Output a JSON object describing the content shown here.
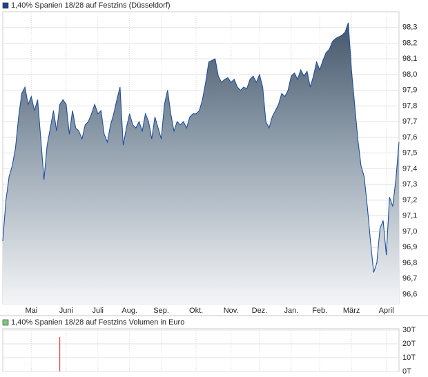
{
  "chart_data": [
    {
      "type": "area",
      "series": [
        {
          "name": "1,40% Spanien 18/28 auf Festzins (Düsseldorf)",
          "color": "#1f4f9e",
          "legend_color": "#1f3f8f",
          "values": [
            96.94,
            97.2,
            97.35,
            97.42,
            97.53,
            97.73,
            97.88,
            97.92,
            97.81,
            97.86,
            97.77,
            97.84,
            97.59,
            97.33,
            97.55,
            97.66,
            97.77,
            97.64,
            97.81,
            97.84,
            97.81,
            97.62,
            97.77,
            97.66,
            97.64,
            97.59,
            97.68,
            97.7,
            97.75,
            97.81,
            97.75,
            97.77,
            97.62,
            97.57,
            97.68,
            97.75,
            97.84,
            97.92,
            97.55,
            97.66,
            97.75,
            97.68,
            97.66,
            97.7,
            97.64,
            97.75,
            97.7,
            97.59,
            97.73,
            97.66,
            97.59,
            97.81,
            97.9,
            97.75,
            97.64,
            97.7,
            97.68,
            97.7,
            97.66,
            97.73,
            97.75,
            97.75,
            97.77,
            97.84,
            97.95,
            98.08,
            98.09,
            98.1,
            97.99,
            97.95,
            97.97,
            97.98,
            97.95,
            97.97,
            97.92,
            97.9,
            97.92,
            97.91,
            97.97,
            97.99,
            97.95,
            98.0,
            97.92,
            97.7,
            97.66,
            97.73,
            97.77,
            97.81,
            97.88,
            97.86,
            97.9,
            97.99,
            98.01,
            97.97,
            98.03,
            97.99,
            98.02,
            97.92,
            97.99,
            98.08,
            98.03,
            98.09,
            98.14,
            98.16,
            98.21,
            98.23,
            98.24,
            98.25,
            98.27,
            98.33,
            98.03,
            97.81,
            97.59,
            97.42,
            97.35,
            97.16,
            96.94,
            96.74,
            96.8,
            97.02,
            97.07,
            96.85,
            97.22,
            97.16,
            97.33,
            97.57
          ]
        }
      ],
      "categories": [
        null,
        null,
        null,
        null,
        null,
        null,
        null,
        null,
        null,
        "Mai",
        null,
        null,
        null,
        null,
        null,
        null,
        null,
        null,
        null,
        null,
        "Juni",
        null,
        null,
        null,
        null,
        null,
        null,
        null,
        null,
        null,
        "Juli",
        null,
        null,
        null,
        null,
        null,
        null,
        null,
        null,
        null,
        "Aug.",
        null,
        null,
        null,
        null,
        null,
        null,
        null,
        null,
        null,
        "Sep.",
        null,
        null,
        null,
        null,
        null,
        null,
        null,
        null,
        null,
        null,
        "Okt.",
        null,
        null,
        null,
        null,
        null,
        null,
        null,
        null,
        null,
        null,
        "Nov.",
        null,
        null,
        null,
        null,
        null,
        null,
        null,
        null,
        "Dez.",
        null,
        null,
        null,
        null,
        null,
        null,
        null,
        null,
        null,
        "Jan.",
        null,
        null,
        null,
        null,
        null,
        null,
        null,
        null,
        "Feb.",
        null,
        null,
        null,
        null,
        null,
        null,
        null,
        null,
        null,
        "März",
        null,
        null,
        null,
        null,
        null,
        null,
        null,
        null,
        null,
        null,
        "April",
        null,
        null,
        null,
        null
      ],
      "ylim": [
        96.54,
        98.4
      ],
      "yticks": [
        {
          "value": 96.6,
          "label": "96,6"
        },
        {
          "value": 96.7,
          "label": "96,7"
        },
        {
          "value": 96.8,
          "label": "96,8"
        },
        {
          "value": 96.9,
          "label": "96,9"
        },
        {
          "value": 97.0,
          "label": "97,0"
        },
        {
          "value": 97.1,
          "label": "97,1"
        },
        {
          "value": 97.2,
          "label": "97,2"
        },
        {
          "value": 97.3,
          "label": "97,3"
        },
        {
          "value": 97.4,
          "label": "97,4"
        },
        {
          "value": 97.5,
          "label": "97,5"
        },
        {
          "value": 97.6,
          "label": "97,6"
        },
        {
          "value": 97.7,
          "label": "97,7"
        },
        {
          "value": 97.8,
          "label": "97,8"
        },
        {
          "value": 97.9,
          "label": "97,9"
        },
        {
          "value": 98.0,
          "label": "98,0"
        },
        {
          "value": 98.1,
          "label": "98,1"
        },
        {
          "value": 98.2,
          "label": "98,2"
        },
        {
          "value": 98.3,
          "label": "98,3"
        }
      ],
      "grid": true
    },
    {
      "type": "bar",
      "series": [
        {
          "name": "1,40% Spanien 18/28 auf Festzins Volumen in Euro",
          "color": "#d42020",
          "legend_color": "#7cc87c",
          "values": [
            null,
            null,
            null,
            null,
            null,
            null,
            null,
            null,
            null,
            null,
            null,
            null,
            null,
            null,
            null,
            null,
            null,
            null,
            25,
            null,
            null,
            null,
            null,
            null,
            null,
            null,
            null,
            null,
            null,
            null,
            null,
            null,
            null,
            null,
            null,
            null,
            null,
            null,
            null,
            null,
            null,
            null,
            null,
            null,
            null,
            null,
            null,
            null,
            null,
            null,
            null,
            null,
            null,
            null,
            null,
            null,
            null,
            null,
            null,
            null,
            null,
            null,
            null,
            null,
            null,
            null,
            null,
            null,
            null,
            null,
            null,
            null,
            null,
            null,
            null,
            null,
            null,
            null,
            null,
            null,
            null,
            null,
            null,
            null,
            null,
            null,
            null,
            null,
            null,
            null,
            null,
            null,
            null,
            null,
            null,
            null,
            null,
            null,
            null,
            null,
            null,
            null,
            null,
            null,
            null,
            null,
            null,
            null,
            null,
            null,
            null,
            null,
            null,
            null,
            null,
            null,
            null,
            null,
            null,
            null,
            null,
            null,
            null,
            null,
            null,
            null
          ]
        }
      ],
      "ylim": [
        0,
        31
      ],
      "yticks": [
        {
          "value": 0,
          "label": "0T"
        },
        {
          "value": 10,
          "label": "10T"
        },
        {
          "value": 20,
          "label": "20T"
        },
        {
          "value": 30,
          "label": "30T"
        }
      ],
      "grid": true
    }
  ]
}
